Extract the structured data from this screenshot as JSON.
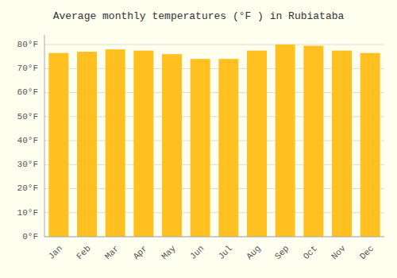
{
  "chart_data": {
    "type": "bar",
    "title": "Average monthly temperatures (°F ) in Rubiataba",
    "categories": [
      "Jan",
      "Feb",
      "Mar",
      "Apr",
      "May",
      "Jun",
      "Jul",
      "Aug",
      "Sep",
      "Oct",
      "Nov",
      "Dec"
    ],
    "values": [
      76.5,
      77.0,
      78.0,
      77.5,
      76.0,
      74.0,
      74.0,
      77.5,
      80.0,
      79.5,
      77.5,
      76.5
    ],
    "color": "#FFC020",
    "ylim": [
      0,
      84
    ],
    "yticks": [
      {
        "value": 0,
        "label": "0°F"
      },
      {
        "value": 10,
        "label": "10°F"
      },
      {
        "value": 20,
        "label": "20°F"
      },
      {
        "value": 30,
        "label": "30°F"
      },
      {
        "value": 40,
        "label": "40°F"
      },
      {
        "value": 50,
        "label": "50°F"
      },
      {
        "value": 60,
        "label": "60°F"
      },
      {
        "value": 70,
        "label": "70°F"
      },
      {
        "value": 80,
        "label": "80°F"
      }
    ],
    "grid": true
  }
}
